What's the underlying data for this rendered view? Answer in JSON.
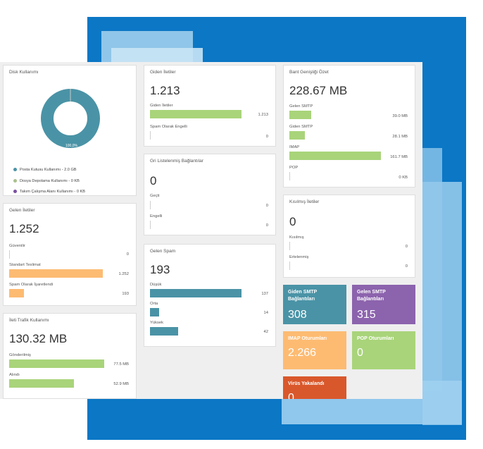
{
  "colors": {
    "background_blue": "#0b77c5",
    "green_bar": "#a9d47a",
    "orange_bar": "#fdbb72",
    "teal_bar": "#4a93a6",
    "tile_teal": "#4a93a6",
    "tile_purple": "#8c63ad",
    "tile_orange": "#fdbb72",
    "tile_green": "#a9d47a",
    "tile_red": "#d9582b"
  },
  "disk": {
    "title": "Disk Kullanımı",
    "donut_label": "100,0%",
    "donut_fraction": 1.0,
    "legend": [
      {
        "text": "Posta Kutusu Kullanımı - 2.0 GB",
        "color": "#4a93a6"
      },
      {
        "text": "Dosya Depolama Kullanımı - 0 KB",
        "color": "#a9c08c"
      },
      {
        "text": "Takım Çalışma Alanı Kullanımı - 0 KB",
        "color": "#7b4fa0"
      }
    ]
  },
  "incoming": {
    "title": "Gelen İletiler",
    "total": "1.252",
    "rows": [
      {
        "label": "Güvenilir",
        "value": "0",
        "fraction": 0.0
      },
      {
        "label": "Standart Teslimat",
        "value": "1.252",
        "fraction": 1.0
      },
      {
        "label": "Spam Olarak İşaretlendi",
        "value": "193",
        "fraction": 0.154
      }
    ]
  },
  "traffic": {
    "title": "İleti Trafik Kullanımı",
    "total": "130.32 MB",
    "rows": [
      {
        "label": "Gönderilmiş",
        "value": "77.5 MB",
        "fraction": 1.0
      },
      {
        "label": "Alındı",
        "value": "52.9 MB",
        "fraction": 0.68
      }
    ]
  },
  "outgoing": {
    "title": "Giden İletiler",
    "total": "1.213",
    "rows": [
      {
        "label": "Giden İletiler",
        "value": "1.213",
        "fraction": 1.0
      },
      {
        "label": "Spam Olarak Engelli",
        "value": "0",
        "fraction": 0.0
      }
    ]
  },
  "greylist": {
    "title": "Gri Listelenmiş Bağlantılar",
    "total": "0",
    "rows": [
      {
        "label": "Geçti",
        "value": "0",
        "fraction": 0.0
      },
      {
        "label": "Engelli",
        "value": "0",
        "fraction": 0.0
      }
    ]
  },
  "spam": {
    "title": "Gelen Spam",
    "total": "193",
    "rows": [
      {
        "label": "Düşük",
        "value": "137",
        "fraction": 1.0
      },
      {
        "label": "Orta",
        "value": "14",
        "fraction": 0.1
      },
      {
        "label": "Yüksek",
        "value": "42",
        "fraction": 0.31
      }
    ]
  },
  "bandwidth": {
    "title": "Bant Genişliği Özet",
    "total": "228.67 MB",
    "rows": [
      {
        "label": "Gelen SMTP",
        "value": "39.0 MB",
        "fraction": 0.24
      },
      {
        "label": "Giden SMTP",
        "value": "28.1 MB",
        "fraction": 0.17
      },
      {
        "label": "IMAP",
        "value": "161.7 MB",
        "fraction": 1.0
      },
      {
        "label": "POP",
        "value": "0 KB",
        "fraction": 0.0
      }
    ]
  },
  "throttled": {
    "title": "Kısılmış İletiler",
    "total": "0",
    "rows": [
      {
        "label": "Kısılmış",
        "value": "0",
        "fraction": 0.0
      },
      {
        "label": "Ertelenmiş",
        "value": "0",
        "fraction": 0.0
      }
    ]
  },
  "tiles": {
    "smtp_out": {
      "title": "Giden SMTP Bağlantıları",
      "value": "308"
    },
    "smtp_in": {
      "title": "Gelen SMTP Bağlantıları",
      "value": "315"
    },
    "imap": {
      "title": "IMAP Oturumları",
      "value": "2.266"
    },
    "pop": {
      "title": "POP Oturumları",
      "value": "0"
    },
    "virus": {
      "title": "Virüs Yakalandı",
      "value": "0"
    }
  }
}
